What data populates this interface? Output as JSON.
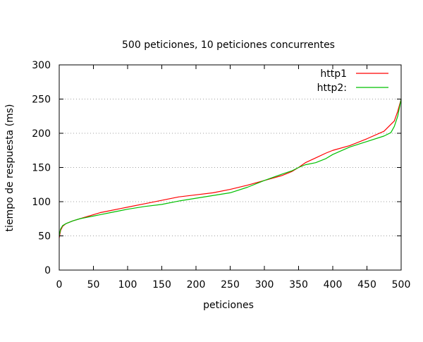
{
  "chart_data": {
    "type": "line",
    "title": "500 peticiones, 10 peticiones concurrentes",
    "xlabel": "peticiones",
    "ylabel": "tiempo de respuesta (ms)",
    "xlim": [
      0,
      500
    ],
    "ylim": [
      0,
      300
    ],
    "xticks": [
      "0",
      "50",
      "100",
      "150",
      "200",
      "250",
      "300",
      "350",
      "400",
      "450",
      "500"
    ],
    "yticks": [
      "0",
      "50",
      "100",
      "150",
      "200",
      "250",
      "300"
    ],
    "grid": "horizontal dotted",
    "legend_position": "top-right",
    "series": [
      {
        "name": "http1",
        "color": "#ff0000",
        "x": [
          0,
          2,
          5,
          10,
          20,
          30,
          40,
          50,
          60,
          75,
          90,
          100,
          125,
          150,
          175,
          200,
          225,
          250,
          275,
          300,
          325,
          340,
          350,
          360,
          375,
          390,
          400,
          425,
          450,
          475,
          490,
          495,
          500
        ],
        "y": [
          47,
          58,
          64,
          68,
          72,
          75,
          78,
          81,
          84,
          87,
          90,
          92,
          97,
          102,
          107,
          110,
          113,
          118,
          124,
          131,
          138,
          144,
          150,
          157,
          164,
          171,
          175,
          182,
          192,
          203,
          218,
          232,
          250
        ]
      },
      {
        "name": "http2:",
        "color": "#00c000",
        "x": [
          0,
          2,
          5,
          10,
          20,
          30,
          40,
          50,
          60,
          75,
          90,
          100,
          125,
          150,
          175,
          200,
          225,
          250,
          275,
          300,
          325,
          340,
          350,
          360,
          375,
          390,
          400,
          425,
          450,
          475,
          485,
          490,
          495,
          500
        ],
        "y": [
          50,
          60,
          65,
          68,
          72,
          75,
          77,
          79,
          81,
          84,
          87,
          89,
          93,
          96,
          101,
          105,
          109,
          113,
          121,
          131,
          140,
          145,
          150,
          154,
          157,
          163,
          169,
          180,
          188,
          196,
          201,
          210,
          225,
          250
        ]
      }
    ]
  }
}
